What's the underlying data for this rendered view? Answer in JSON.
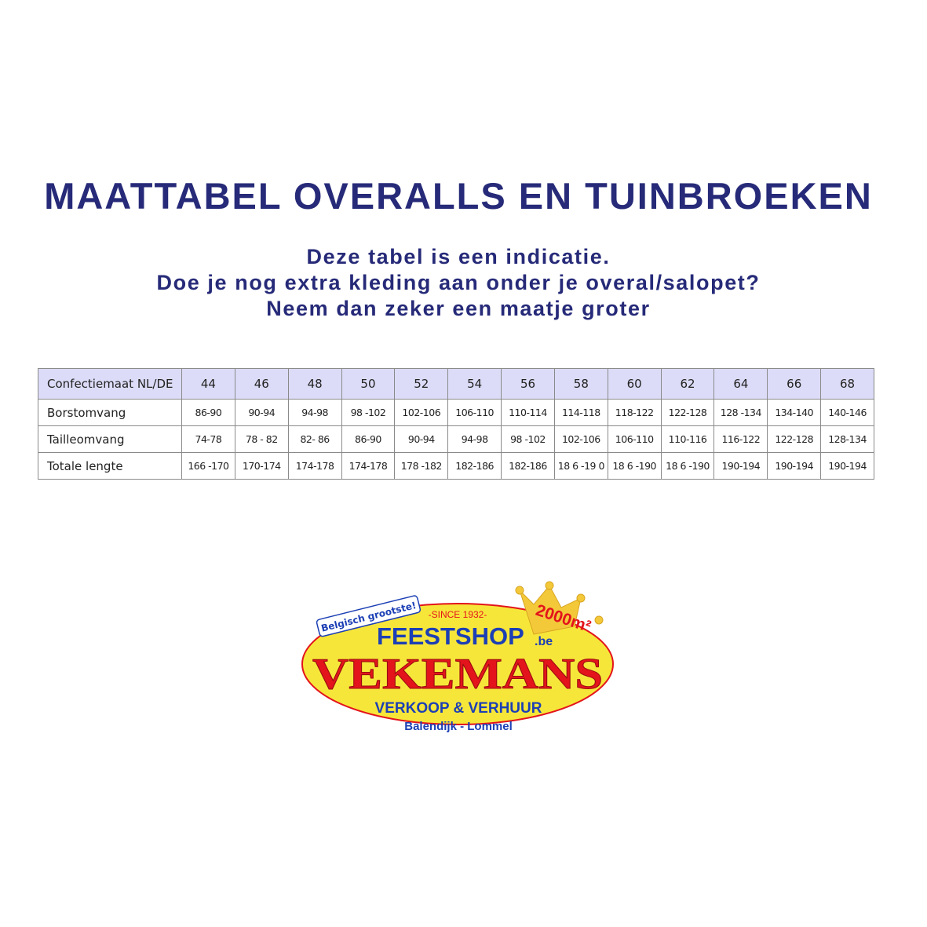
{
  "title": "MAATTABEL OVERALLS EN TUINBROEKEN",
  "subtitle_lines": [
    "Deze tabel is een indicatie.",
    "Doe je nog extra kleding aan onder je overal/salopet?",
    "Neem dan zeker een maatje groter"
  ],
  "table": {
    "header_label": "Confectiemaat NL/DE",
    "sizes": [
      "44",
      "46",
      "48",
      "50",
      "52",
      "54",
      "56",
      "58",
      "60",
      "62",
      "64",
      "66",
      "68"
    ],
    "rows": [
      {
        "label": "Borstomvang",
        "values": [
          "86-90",
          "90-94",
          "94-98",
          "98 -102",
          "102-106",
          "106-110",
          "110-114",
          "114-118",
          "118-122",
          "122-128",
          "128 -134",
          "134-140",
          "140-146"
        ]
      },
      {
        "label": "Tailleomvang",
        "values": [
          "74-78",
          "78 - 82",
          "82- 86",
          "86-90",
          "90-94",
          "94-98",
          "98 -102",
          "102-106",
          "106-110",
          "110-116",
          "116-122",
          "122-128",
          "128-134"
        ]
      },
      {
        "label": "Totale lengte",
        "values": [
          "166 -170",
          "170-174",
          "174-178",
          "174-178",
          "178 -182",
          "182-186",
          "182-186",
          "18 6 -19 0",
          "18 6 -190",
          "18 6 -190",
          "190-194",
          "190-194",
          "190-194"
        ]
      }
    ]
  },
  "logo": {
    "badge": "Belgisch grootste!",
    "since": "-SINCE 1932-",
    "shop": "FEESTSHOP",
    "tld": ".be",
    "brand": "VEKEMANS",
    "tagline": "VERKOOP & VERHUUR",
    "location": "Balendijk - Lommel",
    "area": "2000m²",
    "colors": {
      "yellow": "#f7e63a",
      "red": "#e3141b",
      "blue": "#1c3fb5",
      "gold": "#f3c93a"
    }
  }
}
